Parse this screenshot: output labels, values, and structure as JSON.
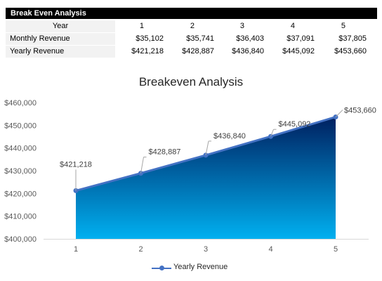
{
  "table": {
    "header": "Break Even Analysis",
    "year_label": "Year",
    "years": [
      "1",
      "2",
      "3",
      "4",
      "5"
    ],
    "rows": [
      {
        "label": "Monthly Revenue",
        "values": [
          "$35,102",
          "$35,741",
          "$36,403",
          "$37,091",
          "$37,805"
        ]
      },
      {
        "label": "Yearly Revenue",
        "values": [
          "$421,218",
          "$428,887",
          "$436,840",
          "$445,092",
          "$453,660"
        ]
      }
    ]
  },
  "chart_data": {
    "type": "area",
    "title": "Breakeven Analysis",
    "xlabel": "",
    "ylabel": "",
    "categories": [
      "1",
      "2",
      "3",
      "4",
      "5"
    ],
    "series": [
      {
        "name": "Yearly Revenue",
        "values": [
          421218,
          428887,
          436840,
          445092,
          453660
        ]
      }
    ],
    "data_labels": [
      "$421,218",
      "$428,887",
      "$436,840",
      "$445,092",
      "$453,660"
    ],
    "ylim": [
      400000,
      460000
    ],
    "yticks": [
      400000,
      410000,
      420000,
      430000,
      440000,
      450000,
      460000
    ],
    "ytick_labels": [
      "$400,000",
      "$410,000",
      "$420,000",
      "$430,000",
      "$440,000",
      "$450,000",
      "$460,000"
    ],
    "grid": false,
    "legend": "bottom",
    "colors": {
      "line": "#4472c4",
      "fill_top": "#002060",
      "fill_bottom": "#00b0f0"
    }
  }
}
